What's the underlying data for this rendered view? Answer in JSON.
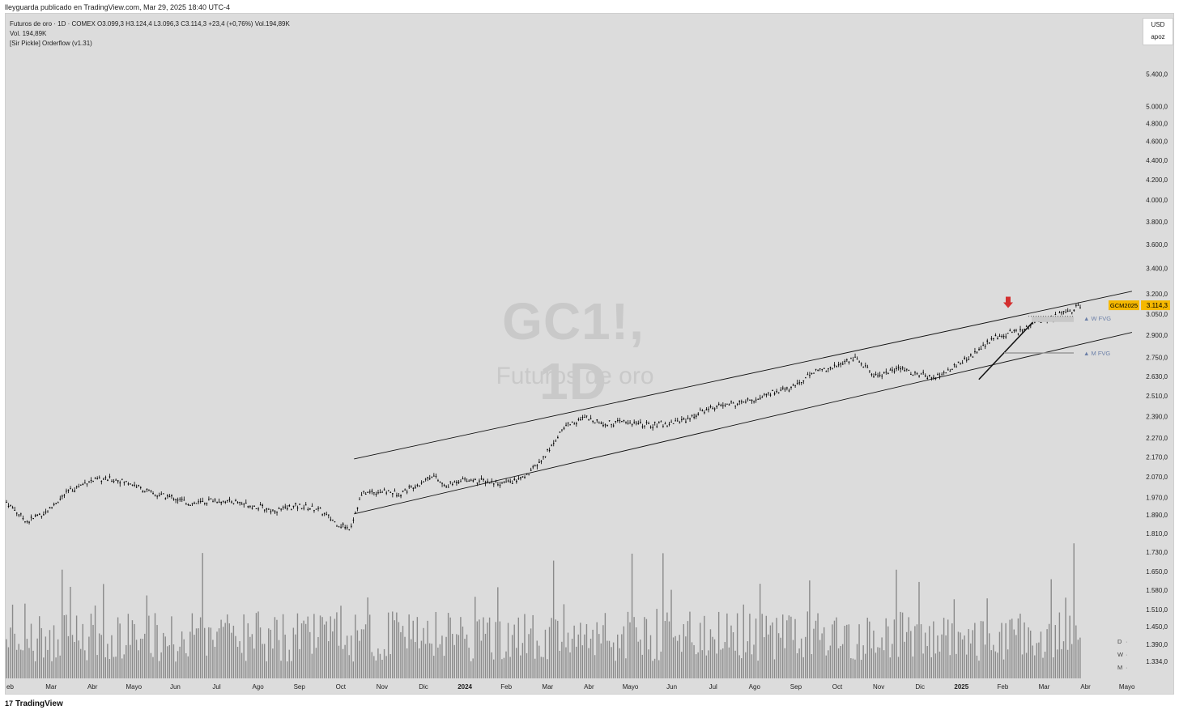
{
  "published": "lleyguarda publicado en TradingView.com, Mar 29, 2025 18:40 UTC-4",
  "legend": {
    "line1": "Futuros de oro · 1D · COMEX  O3.099,3  H3.124,4  L3.096,3  C3.114,3  +23,4 (+0,76%)  Vol.194,89K",
    "line2": "Vol.  194,89K",
    "line3": "[Sir Pickle] Orderflow (v1.31)"
  },
  "watermark": {
    "symbol": "GC1!, 1D",
    "name": "Futuros de oro"
  },
  "currency_box": {
    "currency": "USD",
    "label": "apoz"
  },
  "price_tag": {
    "symbol": "GCM2025",
    "price": "3.114,3"
  },
  "annotations": {
    "wfvg": "▲ W FVG",
    "mfvg": "▲ M FVG"
  },
  "dwm": [
    "D",
    "W",
    "M"
  ],
  "footer": {
    "brand": "TradingView",
    "logo": "17"
  },
  "colors": {
    "background": "#dcdcdc",
    "candle": "#000000",
    "volume": "#8a8a8a",
    "tag": "#f5b800",
    "arrow": "#d32f2f",
    "fvg_label": "#6b7fa8"
  },
  "chart_data": {
    "type": "candlestick",
    "symbol": "GC1!",
    "timeframe": "1D",
    "y_axis_scale": "log",
    "y_ticks": [
      "5.400,0",
      "5.000,0",
      "4.800,0",
      "4.600,0",
      "4.400,0",
      "4.200,0",
      "4.000,0",
      "3.800,0",
      "3.600,0",
      "3.400,0",
      "3.200,0",
      "3.050,0",
      "2.900,0",
      "2.750,0",
      "2.630,0",
      "2.510,0",
      "2.390,0",
      "2.270,0",
      "2.170,0",
      "2.070,0",
      "1.970,0",
      "1.890,0",
      "1.810,0",
      "1.730,0",
      "1.650,0",
      "1.580,0",
      "1.510,0",
      "1.450,0",
      "1.390,0",
      "1.334,0"
    ],
    "x_labels": [
      "Feb",
      "Mar",
      "Abr",
      "Mayo",
      "Jun",
      "Jul",
      "Ago",
      "Sep",
      "Oct",
      "Nov",
      "Dic",
      "2024",
      "Feb",
      "Mar",
      "Abr",
      "Mayo",
      "Jun",
      "Jul",
      "Ago",
      "Sep",
      "Oct",
      "Nov",
      "Dic",
      "2025",
      "Feb",
      "Mar",
      "Abr",
      "Mayo"
    ],
    "x_label_display": [
      "eb",
      "Mar",
      "Abr",
      "Mayo",
      "Jun",
      "Jul",
      "Ago",
      "Sep",
      "Oct",
      "Nov",
      "Dic",
      "2024",
      "Feb",
      "Mar",
      "Abr",
      "Mayo",
      "Jun",
      "Jul",
      "Ago",
      "Sep",
      "Oct",
      "Nov",
      "Dic",
      "2025",
      "Feb",
      "Mar",
      "Abr",
      "Mayo"
    ],
    "close_series": {
      "anchors_month_index": [
        0,
        0.5,
        1,
        1.5,
        2,
        2.5,
        3,
        3.5,
        4,
        4.5,
        5,
        5.5,
        6,
        6.5,
        7,
        7.5,
        8,
        8.3,
        8.6,
        9,
        9.5,
        10,
        10.3,
        10.6,
        11,
        11.5,
        12,
        12.5,
        13,
        13.5,
        14,
        14.5,
        15,
        15.5,
        16,
        16.5,
        17,
        17.5,
        18,
        18.5,
        19,
        19.5,
        20,
        20.5,
        21,
        21.3,
        21.6,
        22,
        22.5,
        23,
        23.5,
        24,
        24.5,
        25,
        25.5,
        26
      ],
      "anchors_price": [
        1950,
        1860,
        1910,
        2000,
        2050,
        2060,
        2040,
        1990,
        1970,
        1940,
        1960,
        1950,
        1930,
        1910,
        1930,
        1920,
        1850,
        1830,
        1990,
        2000,
        1990,
        2040,
        2080,
        2020,
        2060,
        2050,
        2040,
        2060,
        2170,
        2340,
        2380,
        2350,
        2360,
        2340,
        2350,
        2380,
        2440,
        2460,
        2480,
        2530,
        2560,
        2660,
        2690,
        2750,
        2630,
        2660,
        2680,
        2640,
        2630,
        2700,
        2800,
        2900,
        2930,
        3000,
        3050,
        3110
      ]
    },
    "channel": {
      "upper": {
        "from": {
          "month_index": 8.4,
          "price": 2160
        },
        "to": {
          "month_index": 27.2,
          "price": 3220
        }
      },
      "lower": {
        "from": {
          "month_index": 8.4,
          "price": 1895
        },
        "to": {
          "month_index": 27.2,
          "price": 2920
        }
      }
    },
    "trend_line": {
      "from": {
        "month_index": 23.5,
        "price": 2610
      },
      "to": {
        "month_index": 24.8,
        "price": 2990
      }
    },
    "fvg_levels": [
      {
        "label": "W FVG",
        "price": 3010
      },
      {
        "label": "M FVG",
        "price": 2780
      }
    ],
    "last_price": 3114.3,
    "volume_peak": 1890,
    "volume_min": 1334,
    "volume_unit": "K"
  }
}
